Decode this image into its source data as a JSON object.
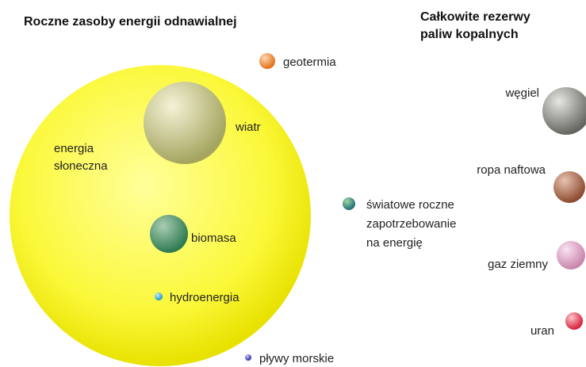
{
  "renewables": {
    "title": "Roczne zasoby energii odnawialnej",
    "solar": [
      "energia",
      "słoneczna"
    ],
    "wind": "wiatr",
    "biomass": "biomasa",
    "hydro": "hydroenergia",
    "geothermal": "geotermia",
    "tidal": "pływy morskie"
  },
  "demand": [
    "światowe roczne",
    "zapotrzebowanie",
    "na energię"
  ],
  "fossil": {
    "title": [
      "Całkowite rezerwy",
      "paliw kopalnych"
    ],
    "coal": "węgiel",
    "oil": "ropa naftowa",
    "gas": "gaz ziemny",
    "uranium": "uran"
  }
}
